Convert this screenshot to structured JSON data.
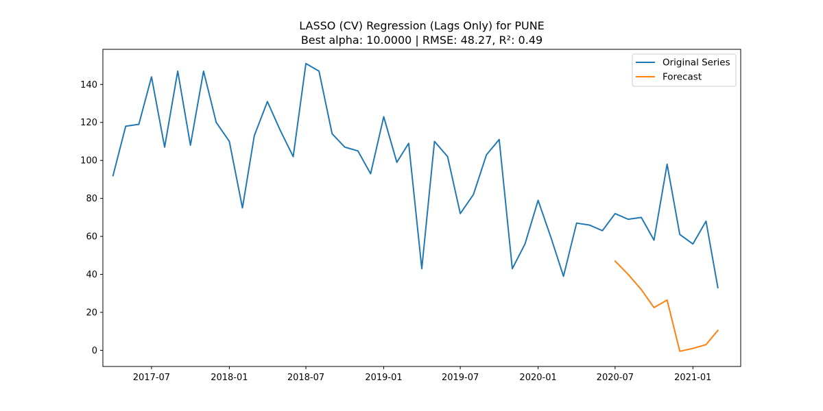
{
  "chart_data": {
    "type": "line",
    "title": "LASSO (CV) Regression (Lags Only) for PUNE",
    "subtitle": "Best alpha: 10.0000 | RMSE: 48.27, R²: 0.49",
    "xlabel": "",
    "ylabel": "",
    "x_type": "date",
    "xlim": [
      "2017-03-08",
      "2021-04-24"
    ],
    "ylim": [
      -8.5,
      158.5
    ],
    "x_ticks": [
      "2017-07",
      "2018-01",
      "2018-07",
      "2019-01",
      "2019-07",
      "2020-01",
      "2020-07",
      "2021-01"
    ],
    "y_ticks": [
      0,
      20,
      40,
      60,
      80,
      100,
      120,
      140
    ],
    "grid": false,
    "legend_position": "upper right",
    "series": [
      {
        "name": "Original Series",
        "color": "#1f77b4",
        "x": [
          "2017-04-01",
          "2017-05-01",
          "2017-06-01",
          "2017-07-01",
          "2017-08-01",
          "2017-09-01",
          "2017-10-01",
          "2017-11-01",
          "2017-12-01",
          "2018-01-01",
          "2018-02-01",
          "2018-03-01",
          "2018-04-01",
          "2018-05-01",
          "2018-06-01",
          "2018-07-01",
          "2018-08-01",
          "2018-09-01",
          "2018-10-01",
          "2018-11-01",
          "2018-12-01",
          "2019-01-01",
          "2019-02-01",
          "2019-03-01",
          "2019-04-01",
          "2019-05-01",
          "2019-06-01",
          "2019-07-01",
          "2019-08-01",
          "2019-09-01",
          "2019-10-01",
          "2019-11-01",
          "2019-12-01",
          "2020-01-01",
          "2020-02-01",
          "2020-03-01",
          "2020-04-01",
          "2020-05-01",
          "2020-06-01",
          "2020-07-01",
          "2020-08-01",
          "2020-09-01",
          "2020-10-01",
          "2020-11-01",
          "2020-12-01",
          "2021-01-01",
          "2021-02-01",
          "2021-03-01"
        ],
        "y": [
          92,
          118,
          119,
          144,
          107,
          147,
          108,
          147,
          120,
          110,
          75,
          113,
          131,
          116,
          102,
          151,
          147,
          114,
          107,
          105,
          93,
          123,
          99,
          109,
          43,
          110,
          102,
          72,
          82,
          103,
          111,
          43,
          56,
          79,
          59,
          39,
          67,
          66,
          63,
          72,
          69,
          70,
          58,
          98,
          61,
          56,
          68,
          33
        ]
      },
      {
        "name": "Forecast",
        "color": "#ff7f0e",
        "x": [
          "2020-07-01",
          "2020-08-01",
          "2020-09-01",
          "2020-10-01",
          "2020-11-01",
          "2020-12-01",
          "2021-01-01",
          "2021-02-01",
          "2021-03-01"
        ],
        "y": [
          47,
          40,
          32,
          22.5,
          26.5,
          -0.5,
          1,
          3,
          10.5
        ]
      }
    ]
  }
}
